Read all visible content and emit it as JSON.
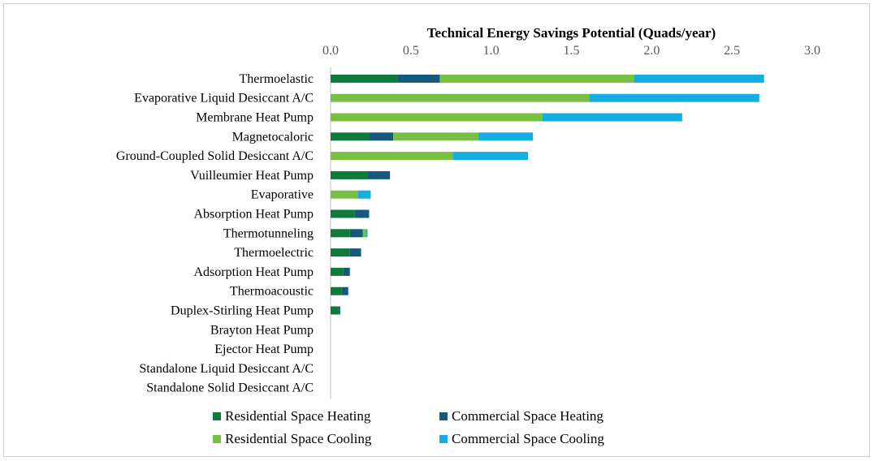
{
  "chart_data": {
    "type": "bar",
    "orientation": "horizontal",
    "stacked": true,
    "title": "Technical Energy Savings Potential (Quads/year)",
    "xlim": [
      0,
      3.0
    ],
    "xticks": [
      "0.0",
      "0.5",
      "1.0",
      "1.5",
      "2.0",
      "2.5",
      "3.0"
    ],
    "axis_position": "top",
    "grid": false,
    "legend_position": "bottom",
    "categories": [
      "Thermoelastic",
      "Evaporative Liquid Desiccant A/C",
      "Membrane Heat Pump",
      "Magnetocaloric",
      "Ground-Coupled Solid Desiccant A/C",
      "Vuilleumier Heat Pump",
      "Evaporative",
      "Absorption Heat Pump",
      "Thermotunneling",
      "Thermoelectric",
      "Adsorption Heat Pump",
      "Thermoacoustic",
      "Duplex-Stirling Heat Pump",
      "Brayton Heat Pump",
      "Ejector Heat Pump",
      "Standalone Liquid Desiccant A/C",
      "Standalone Solid Desiccant A/C"
    ],
    "series": [
      {
        "name": "Residential Space Heating",
        "color": "#0e7a3b",
        "values": [
          0.42,
          0,
          0,
          0.24,
          0,
          0.23,
          0,
          0.15,
          0.12,
          0.12,
          0.08,
          0.07,
          0.05,
          0,
          0,
          0,
          0
        ]
      },
      {
        "name": "Commercial Space Heating",
        "color": "#155a7e",
        "values": [
          0.26,
          0,
          0,
          0.15,
          0,
          0.14,
          0,
          0.09,
          0.08,
          0.07,
          0.04,
          0.04,
          0.01,
          0,
          0,
          0,
          0
        ]
      },
      {
        "name": "Residential Space Cooling",
        "color": "#77c043",
        "values": [
          1.21,
          1.61,
          1.32,
          0.53,
          0.76,
          0,
          0.17,
          0,
          0.02,
          0,
          0,
          0,
          0,
          0,
          0,
          0,
          0
        ]
      },
      {
        "name": "Commercial Space Cooling",
        "color": "#14aee3",
        "values": [
          0.81,
          1.06,
          0.87,
          0.34,
          0.47,
          0,
          0.08,
          0,
          0.01,
          0,
          0,
          0,
          0,
          0,
          0,
          0,
          0
        ]
      }
    ],
    "legend_order": [
      0,
      1,
      2,
      3
    ]
  }
}
